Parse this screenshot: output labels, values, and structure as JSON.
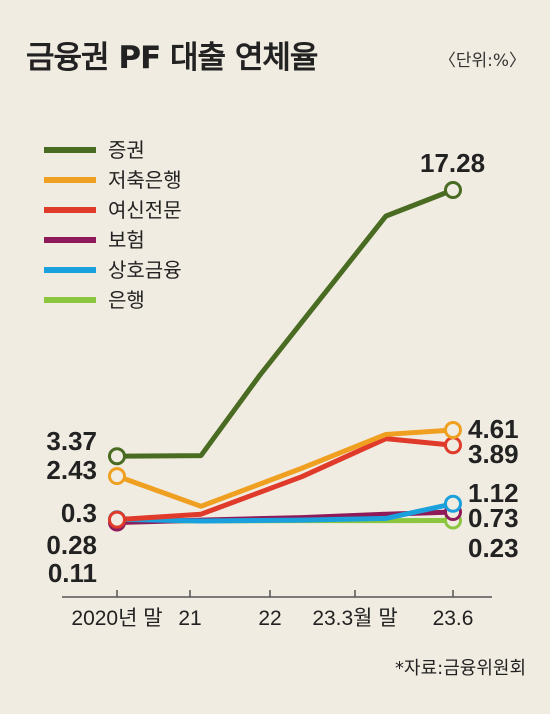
{
  "title": "금융권 PF 대출 연체율",
  "unit": "〈단위:%〉",
  "source": "*자료:금융위원회",
  "chart_data": {
    "type": "line",
    "categories": [
      "2020년 말",
      "21",
      "22",
      "23.3월 말",
      "23.6"
    ],
    "x_index": [
      0,
      1,
      2,
      3,
      4
    ],
    "series": [
      {
        "name": "증권",
        "color": "#4a6b22",
        "x": [
          0,
          1,
          1.7,
          2.2,
          3.2,
          4
        ],
        "values": [
          3.37,
          3.4,
          7.5,
          10.3,
          15.9,
          17.28
        ],
        "start_label": "3.37",
        "end_label": "17.28"
      },
      {
        "name": "저축은행",
        "color": "#f0a020",
        "x": [
          0,
          1,
          2.2,
          3.2,
          4
        ],
        "values": [
          2.43,
          1.0,
          2.8,
          4.4,
          4.61
        ],
        "start_label": "2.43",
        "end_label": "4.61"
      },
      {
        "name": "여신전문",
        "color": "#e03a2a",
        "x": [
          0,
          1,
          2.2,
          3.2,
          4
        ],
        "values": [
          0.28,
          0.6,
          2.4,
          4.2,
          3.89
        ],
        "start_label": "0.28",
        "end_label": "3.89"
      },
      {
        "name": "보험",
        "color": "#8e1a5a",
        "x": [
          0,
          1,
          2.2,
          3.2,
          4
        ],
        "values": [
          0.11,
          0.25,
          0.4,
          0.6,
          0.73
        ],
        "start_label": "0.11",
        "end_label": "0.73"
      },
      {
        "name": "상호금융",
        "color": "#1aa0dc",
        "x": [
          0,
          1,
          2.2,
          3.2,
          4
        ],
        "values": [
          0.3,
          0.2,
          0.25,
          0.35,
          1.12
        ],
        "start_label": "0.3",
        "end_label": "1.12"
      },
      {
        "name": "은행",
        "color": "#8cc63f",
        "x": [
          0,
          1,
          2.2,
          3.2,
          4
        ],
        "values": [
          0.2,
          0.21,
          0.22,
          0.22,
          0.23
        ],
        "start_label": "",
        "end_label": "0.23"
      }
    ],
    "ylim": [
      0,
      20
    ],
    "grid": false,
    "legend_position": "top-left"
  }
}
